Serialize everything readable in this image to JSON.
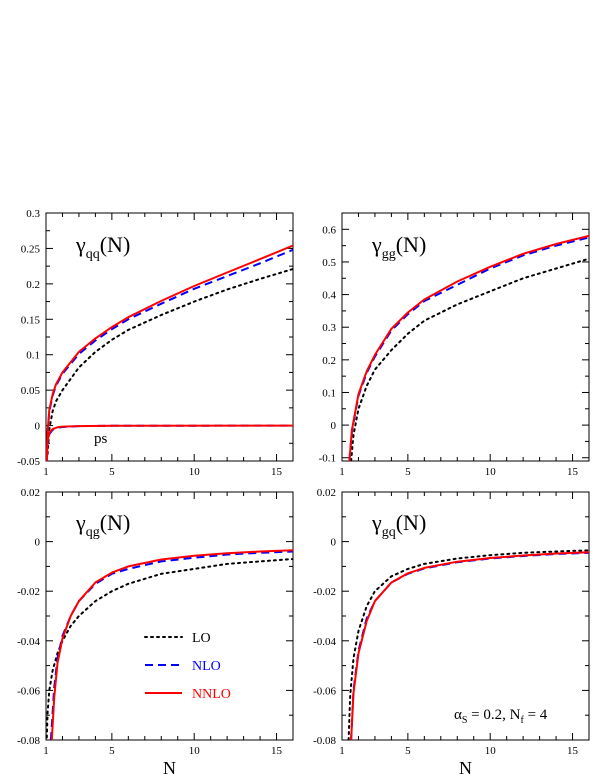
{
  "colors": {
    "LO": "#000000",
    "NLO": "#0000ff",
    "NNLO": "#ff0000"
  },
  "legend": {
    "entries": [
      {
        "key": "LO",
        "label": "LO",
        "dash": "2,4",
        "text_color": "#000000"
      },
      {
        "key": "NLO",
        "label": "NLO",
        "dash": "8,5",
        "text_color": "#0000ff"
      },
      {
        "key": "NNLO",
        "label": "NNLO",
        "dash": "",
        "text_color": "#ff0000"
      }
    ]
  },
  "annotation": {
    "alpha": "α",
    "alpha_sub": "S",
    "mid": " = 0.2, N",
    "nf_sub": "f",
    "end": " = 4"
  },
  "ps_label": "ps",
  "chart_data": [
    {
      "type": "line",
      "title_main": "γ",
      "title_sub": "qq",
      "title_arg": "(N)",
      "xlabel": "",
      "xlim": [
        1,
        16
      ],
      "ylim": [
        -0.05,
        0.3
      ],
      "xticks": [
        1,
        5,
        10,
        15
      ],
      "yticks": [
        -0.05,
        0,
        0.05,
        0.1,
        0.15,
        0.2,
        0.25,
        0.3
      ],
      "ytick_labels": [
        "-0.05",
        "0",
        "0.05",
        "0.1",
        "0.15",
        "0.2",
        "0.25",
        "0.3"
      ],
      "grid": false,
      "series": [
        {
          "key": "LO",
          "x": [
            1.1,
            1.2,
            1.4,
            1.6,
            2,
            3,
            4,
            5,
            6,
            8,
            10,
            12,
            14,
            16
          ],
          "y": [
            -0.04,
            -0.005,
            0.02,
            0.034,
            0.05,
            0.082,
            0.104,
            0.121,
            0.135,
            0.156,
            0.175,
            0.192,
            0.207,
            0.221
          ]
        },
        {
          "key": "NLO",
          "x": [
            1.05,
            1.1,
            1.2,
            1.4,
            1.6,
            2,
            3,
            4,
            5,
            6,
            8,
            10,
            12,
            14,
            16
          ],
          "y": [
            -0.05,
            -0.01,
            0.02,
            0.042,
            0.056,
            0.073,
            0.101,
            0.12,
            0.136,
            0.15,
            0.172,
            0.193,
            0.211,
            0.229,
            0.248
          ]
        },
        {
          "key": "NNLO",
          "x": [
            1.05,
            1.1,
            1.2,
            1.4,
            1.6,
            2,
            3,
            4,
            5,
            6,
            8,
            10,
            12,
            14,
            16
          ],
          "y": [
            -0.05,
            -0.008,
            0.022,
            0.044,
            0.058,
            0.075,
            0.104,
            0.123,
            0.139,
            0.153,
            0.176,
            0.197,
            0.216,
            0.235,
            0.254
          ]
        },
        {
          "key": "NLO",
          "x": [
            1.05,
            1.1,
            1.2,
            1.4,
            1.7,
            2,
            3,
            5,
            16
          ],
          "y": [
            -0.05,
            -0.025,
            -0.012,
            -0.006,
            -0.003,
            -0.002,
            -0.0008,
            -0.0003,
            0
          ]
        },
        {
          "key": "NNLO",
          "x": [
            1.05,
            1.1,
            1.2,
            1.4,
            1.7,
            2,
            3,
            5,
            16
          ],
          "y": [
            -0.05,
            -0.022,
            -0.01,
            -0.005,
            -0.0025,
            -0.0015,
            -0.0007,
            -0.0002,
            0
          ]
        }
      ]
    },
    {
      "type": "line",
      "title_main": "γ",
      "title_sub": "gg",
      "title_arg": "(N)",
      "xlabel": "",
      "xlim": [
        1,
        16
      ],
      "ylim": [
        -0.11,
        0.65
      ],
      "xticks": [
        1,
        5,
        10,
        15
      ],
      "yticks": [
        -0.1,
        0,
        0.1,
        0.2,
        0.3,
        0.4,
        0.5,
        0.6
      ],
      "ytick_labels": [
        "-0.1",
        "0",
        "0.1",
        "0.2",
        "0.3",
        "0.4",
        "0.5",
        "0.6"
      ],
      "grid": false,
      "series": [
        {
          "key": "LO",
          "x": [
            1.55,
            1.7,
            2,
            2.5,
            3,
            4,
            5,
            6,
            8,
            10,
            12,
            14,
            16
          ],
          "y": [
            -0.11,
            -0.03,
            0.05,
            0.12,
            0.17,
            0.23,
            0.28,
            0.32,
            0.37,
            0.41,
            0.45,
            0.48,
            0.51
          ]
        },
        {
          "key": "NLO",
          "x": [
            1.45,
            1.6,
            2,
            2.5,
            3,
            4,
            5,
            6,
            8,
            10,
            12,
            14,
            16
          ],
          "y": [
            -0.11,
            -0.02,
            0.09,
            0.16,
            0.21,
            0.29,
            0.34,
            0.38,
            0.43,
            0.48,
            0.52,
            0.55,
            0.575
          ]
        },
        {
          "key": "NNLO",
          "x": [
            1.45,
            1.6,
            2,
            2.5,
            3,
            4,
            5,
            6,
            8,
            10,
            12,
            14,
            16
          ],
          "y": [
            -0.11,
            -0.015,
            0.095,
            0.165,
            0.215,
            0.295,
            0.345,
            0.385,
            0.44,
            0.485,
            0.525,
            0.555,
            0.58
          ]
        }
      ]
    },
    {
      "type": "line",
      "title_main": "γ",
      "title_sub": "qg",
      "title_arg": "(N)",
      "xlabel": "N",
      "xlim": [
        1,
        16
      ],
      "ylim": [
        -0.08,
        0.02
      ],
      "xticks": [
        1,
        5,
        10,
        15
      ],
      "yticks": [
        -0.08,
        -0.06,
        -0.04,
        -0.02,
        0,
        0.02
      ],
      "ytick_labels": [
        "-0.08",
        "-0.06",
        "-0.04",
        "-0.02",
        "0",
        "0.02"
      ],
      "grid": false,
      "series": [
        {
          "key": "LO",
          "x": [
            1.05,
            1.1,
            1.2,
            1.4,
            1.7,
            2,
            2.5,
            3,
            4,
            5,
            6,
            8,
            10,
            12,
            14,
            16
          ],
          "y": [
            -0.079,
            -0.069,
            -0.06,
            -0.052,
            -0.045,
            -0.04,
            -0.034,
            -0.03,
            -0.024,
            -0.02,
            -0.017,
            -0.013,
            -0.011,
            -0.009,
            -0.008,
            -0.007
          ]
        },
        {
          "key": "NLO",
          "x": [
            1.3,
            1.5,
            1.7,
            2,
            2.5,
            3,
            4,
            5,
            6,
            8,
            10,
            12,
            14,
            16
          ],
          "y": [
            -0.08,
            -0.059,
            -0.047,
            -0.038,
            -0.03,
            -0.024,
            -0.017,
            -0.013,
            -0.011,
            -0.008,
            -0.0065,
            -0.0052,
            -0.0045,
            -0.004
          ]
        },
        {
          "key": "NNLO",
          "x": [
            1.35,
            1.5,
            1.7,
            2,
            2.5,
            3,
            4,
            5,
            6,
            8,
            10,
            12,
            14,
            16
          ],
          "y": [
            -0.08,
            -0.063,
            -0.049,
            -0.039,
            -0.03,
            -0.024,
            -0.0165,
            -0.0125,
            -0.01,
            -0.0072,
            -0.0057,
            -0.0047,
            -0.004,
            -0.0035
          ]
        }
      ]
    },
    {
      "type": "line",
      "title_main": "γ",
      "title_sub": "gq",
      "title_arg": "(N)",
      "xlabel": "N",
      "xlim": [
        1,
        16
      ],
      "ylim": [
        -0.08,
        0.02
      ],
      "xticks": [
        1,
        5,
        10,
        15
      ],
      "yticks": [
        -0.08,
        -0.06,
        -0.04,
        -0.02,
        0,
        0.02
      ],
      "ytick_labels": [
        "-0.08",
        "-0.06",
        "-0.04",
        "-0.02",
        "0",
        "0.02"
      ],
      "grid": false,
      "series": [
        {
          "key": "LO",
          "x": [
            1.4,
            1.5,
            1.7,
            2,
            2.5,
            3,
            4,
            5,
            6,
            8,
            10,
            12,
            14,
            16
          ],
          "y": [
            -0.08,
            -0.062,
            -0.047,
            -0.036,
            -0.026,
            -0.02,
            -0.014,
            -0.011,
            -0.009,
            -0.0068,
            -0.0055,
            -0.0045,
            -0.004,
            -0.0035
          ]
        },
        {
          "key": "NLO",
          "x": [
            1.55,
            1.7,
            2,
            2.5,
            3,
            4,
            5,
            6,
            8,
            10,
            12,
            14,
            16
          ],
          "y": [
            -0.08,
            -0.06,
            -0.044,
            -0.031,
            -0.024,
            -0.0165,
            -0.013,
            -0.0108,
            -0.0083,
            -0.0068,
            -0.0058,
            -0.005,
            -0.0045
          ]
        },
        {
          "key": "NNLO",
          "x": [
            1.55,
            1.7,
            2,
            2.5,
            3,
            4,
            5,
            6,
            8,
            10,
            12,
            14,
            16
          ],
          "y": [
            -0.08,
            -0.061,
            -0.045,
            -0.032,
            -0.024,
            -0.0165,
            -0.0128,
            -0.0106,
            -0.0081,
            -0.0066,
            -0.0056,
            -0.0048,
            -0.0043
          ]
        }
      ]
    }
  ]
}
